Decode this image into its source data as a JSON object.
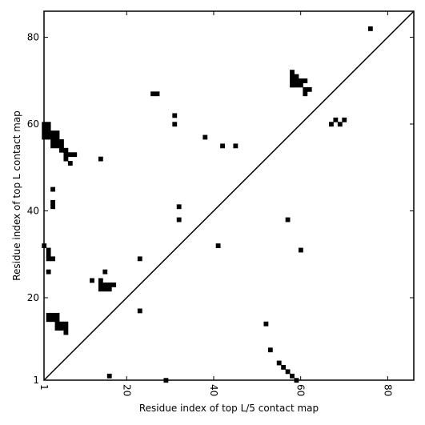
{
  "chart_data": {
    "type": "scatter",
    "title": "",
    "xlabel": "Residue index of top L/5 contact map",
    "ylabel": "Residue index of top L contact map",
    "xlim": [
      1,
      86
    ],
    "ylim": [
      1,
      86
    ],
    "xticks": [
      1,
      20,
      40,
      60,
      80
    ],
    "yticks": [
      1,
      20,
      40,
      60,
      80
    ],
    "marker": "square",
    "marker_color": "#000000",
    "diagonal": true,
    "grid": false,
    "upper_points": [
      [
        1,
        57
      ],
      [
        1,
        58
      ],
      [
        1,
        59
      ],
      [
        1,
        60
      ],
      [
        2,
        57
      ],
      [
        2,
        58
      ],
      [
        2,
        59
      ],
      [
        2,
        60
      ],
      [
        3,
        55
      ],
      [
        3,
        56
      ],
      [
        3,
        57
      ],
      [
        3,
        58
      ],
      [
        4,
        55
      ],
      [
        4,
        56
      ],
      [
        4,
        57
      ],
      [
        4,
        58
      ],
      [
        5,
        54
      ],
      [
        5,
        55
      ],
      [
        5,
        56
      ],
      [
        6,
        52
      ],
      [
        6,
        53
      ],
      [
        6,
        54
      ],
      [
        7,
        53
      ],
      [
        7,
        51
      ],
      [
        8,
        53
      ],
      [
        14,
        52
      ],
      [
        3,
        45
      ],
      [
        3,
        41
      ],
      [
        3,
        42
      ],
      [
        26,
        67
      ],
      [
        27,
        67
      ],
      [
        31,
        62
      ],
      [
        31,
        60
      ],
      [
        38,
        57
      ],
      [
        42,
        55
      ],
      [
        45,
        55
      ],
      [
        32,
        41
      ],
      [
        32,
        38
      ],
      [
        41,
        32
      ],
      [
        23,
        29
      ],
      [
        1,
        32
      ],
      [
        2,
        31
      ],
      [
        2,
        30
      ],
      [
        2,
        29
      ],
      [
        3,
        29
      ],
      [
        2,
        26
      ],
      [
        12,
        24
      ],
      [
        15,
        26
      ],
      [
        14,
        22
      ],
      [
        14,
        23
      ],
      [
        14,
        24
      ],
      [
        15,
        22
      ],
      [
        15,
        23
      ],
      [
        16,
        22
      ],
      [
        16,
        23
      ],
      [
        17,
        23
      ],
      [
        2,
        15
      ],
      [
        2,
        16
      ],
      [
        3,
        15
      ],
      [
        3,
        16
      ],
      [
        4,
        13
      ],
      [
        4,
        14
      ],
      [
        4,
        15
      ],
      [
        4,
        16
      ],
      [
        5,
        13
      ],
      [
        5,
        14
      ],
      [
        6,
        12
      ],
      [
        6,
        13
      ],
      [
        6,
        14
      ],
      [
        23,
        17
      ],
      [
        16,
        2
      ],
      [
        29,
        1
      ],
      [
        57,
        38
      ],
      [
        60,
        31
      ],
      [
        58,
        69
      ],
      [
        58,
        70
      ],
      [
        58,
        71
      ],
      [
        58,
        72
      ],
      [
        59,
        69
      ],
      [
        59,
        70
      ],
      [
        59,
        71
      ],
      [
        60,
        69
      ],
      [
        60,
        70
      ],
      [
        61,
        67
      ],
      [
        61,
        68
      ],
      [
        61,
        70
      ],
      [
        62,
        68
      ],
      [
        67,
        60
      ],
      [
        68,
        61
      ],
      [
        69,
        60
      ],
      [
        70,
        61
      ],
      [
        76,
        82
      ]
    ],
    "lower_points": [
      [
        52,
        14
      ],
      [
        53,
        8
      ],
      [
        55,
        5
      ],
      [
        56,
        4
      ],
      [
        57,
        3
      ],
      [
        58,
        2
      ],
      [
        59,
        1
      ]
    ]
  }
}
